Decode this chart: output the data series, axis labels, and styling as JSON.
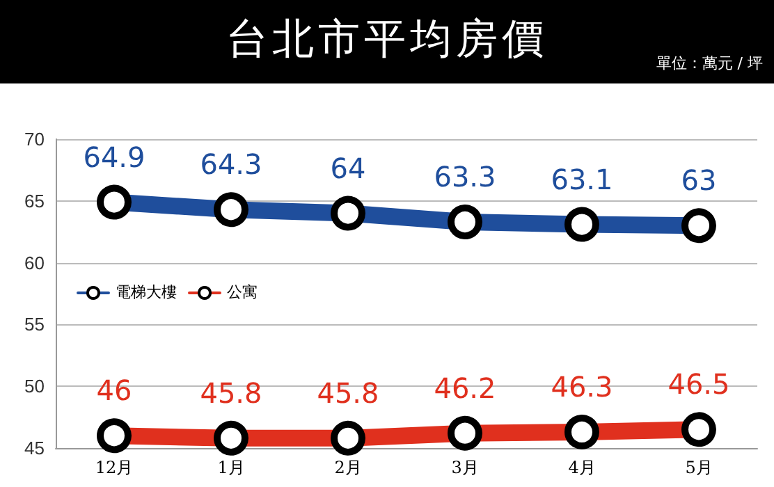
{
  "chart_data": {
    "type": "line",
    "title": "台北市平均房價",
    "subtitle": "單位：萬元 / 坪",
    "categories": [
      "12月",
      "1月",
      "2月",
      "3月",
      "4月",
      "5月"
    ],
    "series": [
      {
        "name": "電梯大樓",
        "color": "#1f4e9c",
        "values": [
          64.9,
          64.3,
          64,
          63.3,
          63.1,
          63
        ]
      },
      {
        "name": "公寓",
        "color": "#e0301e",
        "values": [
          46,
          45.8,
          45.8,
          46.2,
          46.3,
          46.5
        ]
      }
    ],
    "ylim": [
      45,
      70
    ],
    "yticks": [
      45,
      50,
      55,
      60,
      65,
      70
    ],
    "grid": "y",
    "legend": "left",
    "marker": "circle",
    "line_style": "solid",
    "data_labels": true
  }
}
